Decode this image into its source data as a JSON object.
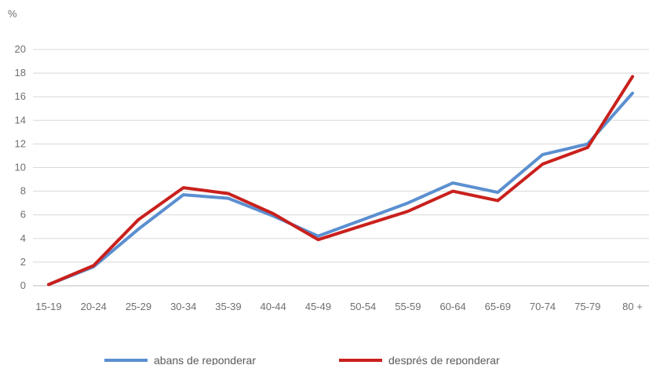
{
  "chart_data": {
    "type": "line",
    "ylabel": "%",
    "ylim": [
      0,
      20
    ],
    "yticks": [
      "0",
      "2",
      "4",
      "6",
      "8",
      "10",
      "12",
      "14",
      "16",
      "18",
      "20"
    ],
    "categories": [
      "15-19",
      "20-24",
      "25-29",
      "30-34",
      "35-39",
      "40-44",
      "45-49",
      "50-54",
      "55-59",
      "60-64",
      "65-69",
      "70-74",
      "75-79",
      "80 +"
    ],
    "series": [
      {
        "name": "abans de reponderar",
        "color": "#5b8fd0",
        "values": [
          0.1,
          1.6,
          4.8,
          7.7,
          7.4,
          5.9,
          4.2,
          5.6,
          7.0,
          8.7,
          7.9,
          11.1,
          12.0,
          16.3
        ]
      },
      {
        "name": "després de reponderar",
        "color": "#c9201c",
        "values": [
          0.1,
          1.7,
          5.6,
          8.3,
          7.8,
          6.1,
          3.9,
          5.1,
          6.3,
          8.0,
          7.2,
          10.3,
          11.7,
          17.7
        ]
      }
    ],
    "grid": true,
    "legend": "bottom"
  }
}
